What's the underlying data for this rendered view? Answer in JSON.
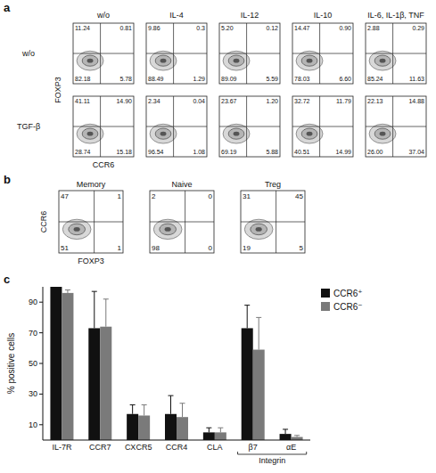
{
  "panel_a": {
    "panel_label": "a",
    "x_label": "CCR6",
    "y_label": "FOXP3",
    "columns": [
      "w/o",
      "IL-4",
      "IL-12",
      "IL-10",
      "IL-6, IL-1β, TNF"
    ],
    "rows": [
      {
        "label": "w/o",
        "values": [
          [
            "11.24",
            "0.81",
            "82.18",
            "5.78"
          ],
          [
            "9.86",
            "0.3",
            "88.49",
            "1.29"
          ],
          [
            "5.20",
            "0.12",
            "89.09",
            "5.59"
          ],
          [
            "14.47",
            "0.90",
            "78.03",
            "6.60"
          ],
          [
            "2.88",
            "0.29",
            "85.24",
            "11.63"
          ]
        ]
      },
      {
        "label": "TGF-β",
        "values": [
          [
            "41.11",
            "14.90",
            "28.74",
            "15.18"
          ],
          [
            "2.34",
            "0.04",
            "96.54",
            "1.08"
          ],
          [
            "23.67",
            "1.20",
            "69.19",
            "5.88"
          ],
          [
            "32.72",
            "11.79",
            "40.51",
            "14.99"
          ],
          [
            "22.13",
            "14.88",
            "26.00",
            "37.04"
          ]
        ]
      }
    ]
  },
  "panel_b": {
    "panel_label": "b",
    "x_label": "FOXP3",
    "y_label": "CCR6",
    "plots": [
      {
        "title": "Memory",
        "values": [
          "47",
          "1",
          "51",
          "1"
        ]
      },
      {
        "title": "Naive",
        "values": [
          "2",
          "0",
          "98",
          "0"
        ]
      },
      {
        "title": "Treg",
        "values": [
          "31",
          "45",
          "19",
          "5"
        ]
      }
    ]
  },
  "chart_data": {
    "type": "bar",
    "panel_label": "c",
    "y_label": "% positive cells",
    "categories": [
      "IL-7R",
      "CCR7",
      "CXCR5",
      "CCR4",
      "CLA",
      "β7",
      "αE"
    ],
    "series": [
      {
        "name": "CCR6⁺",
        "color": "#111111",
        "values": [
          100,
          73,
          17,
          17,
          5,
          73,
          4
        ],
        "errors": [
          0,
          24,
          6,
          12,
          3,
          15,
          3
        ]
      },
      {
        "name": "CCR6⁻",
        "color": "#7a7a7a",
        "values": [
          96,
          74,
          16,
          15,
          5,
          59,
          2
        ],
        "errors": [
          2,
          18,
          7,
          9,
          3,
          21,
          1
        ]
      }
    ],
    "groups": [
      {
        "label": "Integrin",
        "categories": [
          "β7",
          "αE"
        ]
      }
    ],
    "ylim": [
      0,
      100
    ],
    "yticks": [
      10,
      30,
      50,
      70,
      90
    ],
    "grid": false,
    "legend": "right"
  }
}
